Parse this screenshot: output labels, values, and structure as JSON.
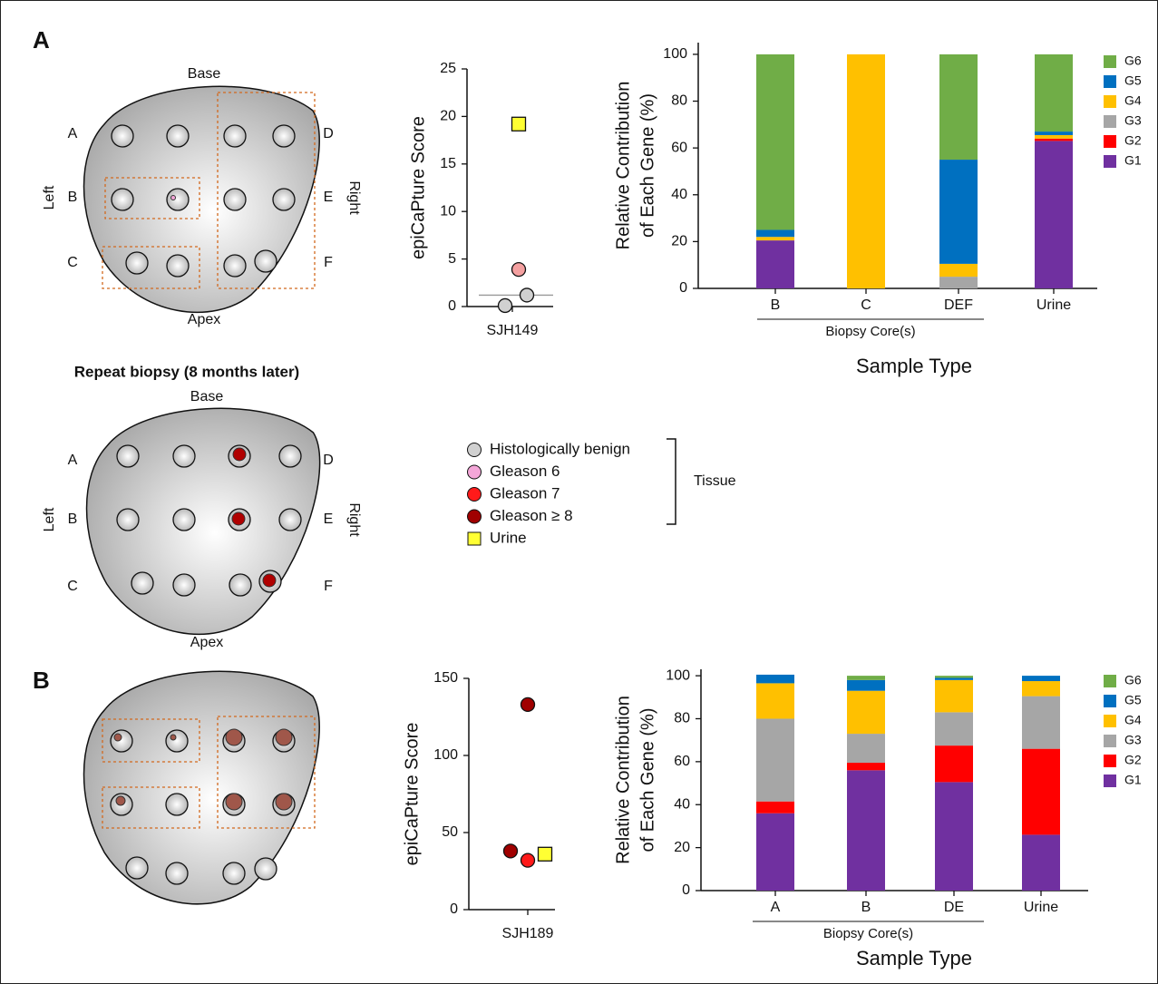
{
  "panel_labels": [
    "A",
    "B"
  ],
  "diagram_a": {
    "top": "Base",
    "bottom": "Apex",
    "left": "Left",
    "right": "Right",
    "rows_left": [
      "A",
      "B",
      "C"
    ],
    "rows_right": [
      "D",
      "E",
      "F"
    ]
  },
  "repeat_biopsy": {
    "title": "Repeat biopsy (8 months later)",
    "top": "Base",
    "bottom": "Apex",
    "left": "Left",
    "right": "Right",
    "rows_left": [
      "A",
      "B",
      "C"
    ],
    "rows_right": [
      "D",
      "E",
      "F"
    ]
  },
  "legend": {
    "items": [
      {
        "label": "Histologically benign",
        "color": "#d0d0d0",
        "marker": "circle"
      },
      {
        "label": "Gleason 6",
        "color": "#f4a6d8",
        "marker": "circle"
      },
      {
        "label": "Gleason 7",
        "color": "#ff1a1a",
        "marker": "circle"
      },
      {
        "label": "Gleason ≥ 8",
        "color": "#a00000",
        "marker": "circle"
      },
      {
        "label": "Urine",
        "color": "#ffff33",
        "marker": "square"
      }
    ],
    "group_label": "Tissue"
  },
  "chart_data": [
    {
      "type": "scatter",
      "ylabel": "epiCaPture Score",
      "categories": [
        "SJH149"
      ],
      "values": [
        0.1,
        1.2,
        3.9,
        19.2
      ],
      "colors": [
        "#d0d0d0",
        "#d0d0d0",
        "#f4a0a0",
        "#ffff33"
      ],
      "markers": [
        "circle",
        "circle",
        "circle",
        "square"
      ],
      "threshold": 1.2,
      "ylim": [
        0,
        25
      ],
      "yticks": [
        0,
        5,
        10,
        15,
        20,
        25
      ]
    },
    {
      "type": "stacked_bar",
      "ylabel": [
        "Relative Contribution",
        "of Each Gene (%)"
      ],
      "xlabel": "Sample Type",
      "group_label": "Biopsy Core(s)",
      "categories": [
        "B",
        "C",
        "DEF",
        "Urine"
      ],
      "ylim": [
        0,
        105
      ],
      "yticks": [
        0,
        20,
        40,
        60,
        80,
        100
      ],
      "series": [
        {
          "name": "G1",
          "color": "#7030a0",
          "values": [
            20.5,
            0,
            0,
            63
          ]
        },
        {
          "name": "G2",
          "color": "#ff0000",
          "values": [
            0,
            0,
            0,
            1
          ]
        },
        {
          "name": "G3",
          "color": "#a6a6a6",
          "values": [
            0,
            0,
            5,
            0
          ]
        },
        {
          "name": "G4",
          "color": "#ffc000",
          "values": [
            1.5,
            100,
            5.5,
            1.5
          ]
        },
        {
          "name": "G5",
          "color": "#0070c0",
          "values": [
            3,
            0,
            44.5,
            1.5
          ]
        },
        {
          "name": "G6",
          "color": "#70ad47",
          "values": [
            75,
            0,
            45,
            33
          ]
        }
      ]
    },
    {
      "type": "scatter",
      "ylabel": "epiCaPture Score",
      "categories": [
        "SJH189"
      ],
      "values": [
        133,
        38,
        32,
        36
      ],
      "colors": [
        "#a00000",
        "#a00000",
        "#ff1a1a",
        "#ffff33"
      ],
      "markers": [
        "circle",
        "circle",
        "circle",
        "square"
      ],
      "ylim": [
        0,
        150
      ],
      "yticks": [
        0,
        50,
        100,
        150
      ]
    },
    {
      "type": "stacked_bar",
      "ylabel": [
        "Relative Contribution",
        "of Each Gene (%)"
      ],
      "xlabel": "Sample Type",
      "group_label": "Biopsy Core(s)",
      "categories": [
        "A",
        "B",
        "DE",
        "Urine"
      ],
      "ylim": [
        0,
        103
      ],
      "yticks": [
        0,
        20,
        40,
        60,
        80,
        100
      ],
      "series": [
        {
          "name": "G1",
          "color": "#7030a0",
          "values": [
            36,
            56,
            50.5,
            26
          ]
        },
        {
          "name": "G2",
          "color": "#ff0000",
          "values": [
            5.5,
            3.5,
            17,
            40
          ]
        },
        {
          "name": "G3",
          "color": "#a6a6a6",
          "values": [
            38.5,
            13.5,
            15.5,
            24.5
          ]
        },
        {
          "name": "G4",
          "color": "#ffc000",
          "values": [
            16.5,
            20,
            15,
            7
          ]
        },
        {
          "name": "G5",
          "color": "#0070c0",
          "values": [
            4,
            5,
            1,
            2.5
          ]
        },
        {
          "name": "G6",
          "color": "#70ad47",
          "values": [
            0,
            2,
            1,
            0
          ]
        }
      ]
    }
  ]
}
